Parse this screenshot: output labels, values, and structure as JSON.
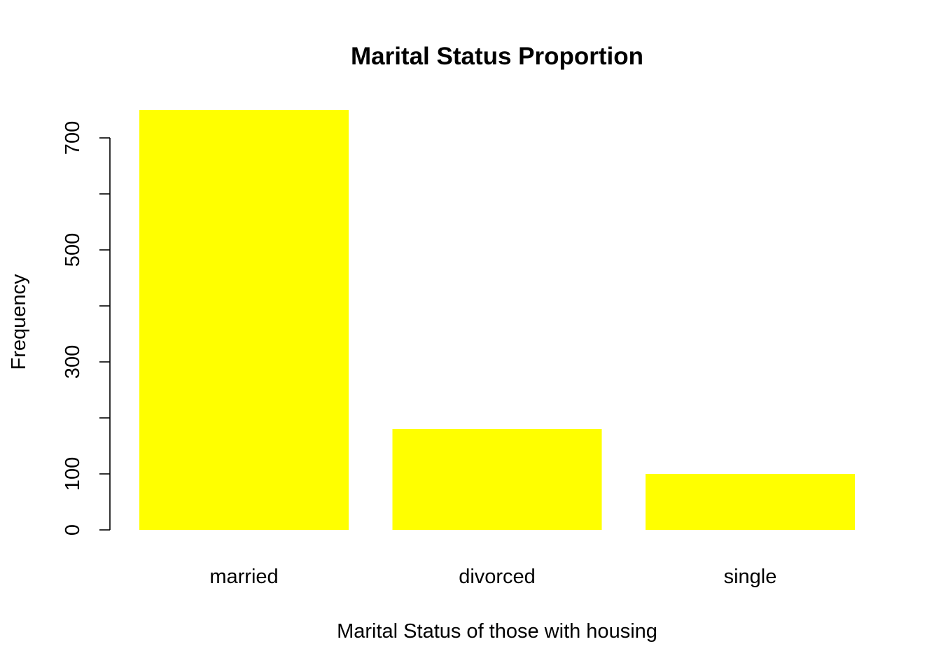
{
  "chart_data": {
    "type": "bar",
    "title": "Marital Status Proportion",
    "xlabel": "Marital Status of those with housing",
    "ylabel": "Frequency",
    "categories": [
      "married",
      "divorced",
      "single"
    ],
    "values": [
      750,
      180,
      100
    ],
    "ylim": [
      0,
      700
    ],
    "y_ticks": [
      0,
      100,
      200,
      300,
      400,
      500,
      600,
      700
    ],
    "y_tick_labels": [
      "0",
      "100",
      "",
      "300",
      "",
      "500",
      "",
      "700"
    ],
    "bar_color": "#FFFF00",
    "grid": false,
    "legend": "none"
  }
}
